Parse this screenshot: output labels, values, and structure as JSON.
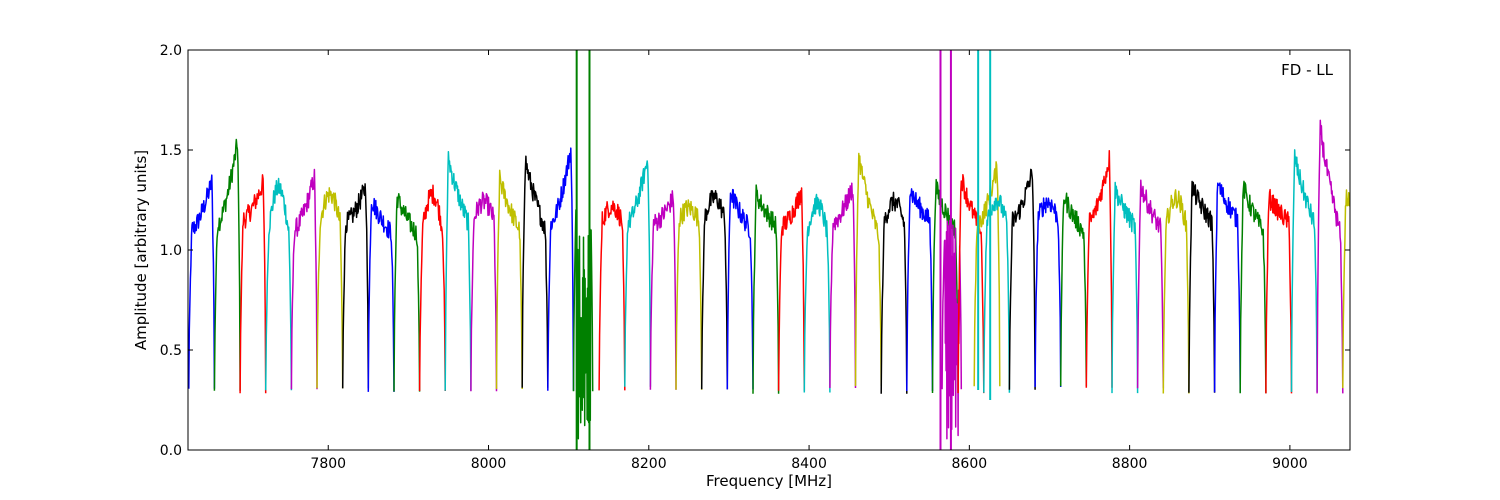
{
  "chart_data": {
    "type": "line",
    "title": "",
    "annotation": "FD - LL",
    "xlabel": "Frequency [MHz]",
    "ylabel": "Amplitude [arbitrary units]",
    "xlim": [
      7625,
      9075
    ],
    "ylim": [
      0.0,
      2.0
    ],
    "xticks": [
      7800,
      8000,
      8200,
      8400,
      8600,
      8800,
      9000
    ],
    "xtick_labels": [
      "7800",
      "8000",
      "8200",
      "8400",
      "8600",
      "8800",
      "9000"
    ],
    "yticks": [
      0.0,
      0.5,
      1.0,
      1.5,
      2.0
    ],
    "ytick_labels": [
      "0.0",
      "0.5",
      "1.0",
      "1.5",
      "2.0"
    ],
    "grid": false,
    "legend": "none",
    "color_cycle": [
      "#0000ff",
      "#008000",
      "#ff0000",
      "#00bfbf",
      "#bf00bf",
      "#bfbf00",
      "#000000"
    ],
    "channel_width_mhz": 32,
    "channel_start_mhz": 7626,
    "channels": [
      {
        "color": "#0000ff",
        "start": 7626,
        "peak": 1.32,
        "shape": "rise"
      },
      {
        "color": "#008000",
        "start": 7658,
        "peak": 1.5,
        "shape": "rise"
      },
      {
        "color": "#ff0000",
        "start": 7690,
        "peak": 1.32,
        "shape": "rise"
      },
      {
        "color": "#00bfbf",
        "start": 7722,
        "peak": 1.31,
        "shape": "hump"
      },
      {
        "color": "#bf00bf",
        "start": 7754,
        "peak": 1.34,
        "shape": "rise"
      },
      {
        "color": "#bfbf00",
        "start": 7786,
        "peak": 1.28,
        "shape": "hump"
      },
      {
        "color": "#000000",
        "start": 7818,
        "peak": 1.3,
        "shape": "rise"
      },
      {
        "color": "#0000ff",
        "start": 7850,
        "peak": 1.25,
        "shape": "fall"
      },
      {
        "color": "#008000",
        "start": 7882,
        "peak": 1.26,
        "shape": "fall"
      },
      {
        "color": "#ff0000",
        "start": 7914,
        "peak": 1.28,
        "shape": "hump"
      },
      {
        "color": "#00bfbf",
        "start": 7946,
        "peak": 1.45,
        "shape": "fall"
      },
      {
        "color": "#bf00bf",
        "start": 7978,
        "peak": 1.24,
        "shape": "hump"
      },
      {
        "color": "#bfbf00",
        "start": 8010,
        "peak": 1.35,
        "shape": "fall"
      },
      {
        "color": "#000000",
        "start": 8042,
        "peak": 1.44,
        "shape": "fall"
      },
      {
        "color": "#0000ff",
        "start": 8074,
        "peak": 1.47,
        "shape": "rise"
      },
      {
        "color": "#008000",
        "start": 8106,
        "peak": 1.29,
        "shape": "rfi"
      },
      {
        "color": "#ff0000",
        "start": 8138,
        "peak": 1.22,
        "shape": "hump"
      },
      {
        "color": "#00bfbf",
        "start": 8170,
        "peak": 1.43,
        "shape": "rise"
      },
      {
        "color": "#bf00bf",
        "start": 8202,
        "peak": 1.25,
        "shape": "rise"
      },
      {
        "color": "#bfbf00",
        "start": 8234,
        "peak": 1.21,
        "shape": "hump"
      },
      {
        "color": "#000000",
        "start": 8266,
        "peak": 1.26,
        "shape": "hump"
      },
      {
        "color": "#0000ff",
        "start": 8298,
        "peak": 1.29,
        "shape": "fall"
      },
      {
        "color": "#008000",
        "start": 8330,
        "peak": 1.28,
        "shape": "fall"
      },
      {
        "color": "#ff0000",
        "start": 8362,
        "peak": 1.28,
        "shape": "rise"
      },
      {
        "color": "#00bfbf",
        "start": 8394,
        "peak": 1.23,
        "shape": "hump"
      },
      {
        "color": "#bf00bf",
        "start": 8426,
        "peak": 1.3,
        "shape": "rise"
      },
      {
        "color": "#bfbf00",
        "start": 8458,
        "peak": 1.46,
        "shape": "fall"
      },
      {
        "color": "#000000",
        "start": 8490,
        "peak": 1.24,
        "shape": "hump"
      },
      {
        "color": "#0000ff",
        "start": 8522,
        "peak": 1.3,
        "shape": "fall"
      },
      {
        "color": "#008000",
        "start": 8554,
        "peak": 1.31,
        "shape": "fall"
      },
      {
        "color": "#bf00bf",
        "start": 8566,
        "peak": 1.1,
        "shape": "rfi"
      },
      {
        "color": "#ff0000",
        "start": 8586,
        "peak": 1.36,
        "shape": "fall"
      },
      {
        "color": "#bfbf00",
        "start": 8606,
        "peak": 1.39,
        "shape": "rise"
      },
      {
        "color": "#00bfbf",
        "start": 8618,
        "peak": 1.25,
        "shape": "hump"
      },
      {
        "color": "#000000",
        "start": 8650,
        "peak": 1.37,
        "shape": "rise"
      },
      {
        "color": "#0000ff",
        "start": 8682,
        "peak": 1.24,
        "shape": "hump"
      },
      {
        "color": "#008000",
        "start": 8714,
        "peak": 1.27,
        "shape": "fall"
      },
      {
        "color": "#ff0000",
        "start": 8746,
        "peak": 1.43,
        "shape": "rise"
      },
      {
        "color": "#00bfbf",
        "start": 8778,
        "peak": 1.3,
        "shape": "fall"
      },
      {
        "color": "#bf00bf",
        "start": 8810,
        "peak": 1.32,
        "shape": "fall"
      },
      {
        "color": "#bfbf00",
        "start": 8842,
        "peak": 1.26,
        "shape": "hump"
      },
      {
        "color": "#000000",
        "start": 8874,
        "peak": 1.31,
        "shape": "fall"
      },
      {
        "color": "#0000ff",
        "start": 8906,
        "peak": 1.33,
        "shape": "fall"
      },
      {
        "color": "#008000",
        "start": 8938,
        "peak": 1.31,
        "shape": "fall"
      },
      {
        "color": "#ff0000",
        "start": 8970,
        "peak": 1.26,
        "shape": "fall"
      },
      {
        "color": "#00bfbf",
        "start": 9002,
        "peak": 1.46,
        "shape": "fall"
      },
      {
        "color": "#bf00bf",
        "start": 9034,
        "peak": 1.6,
        "shape": "fall"
      },
      {
        "color": "#bfbf00",
        "start": 9066,
        "peak": 1.26,
        "shape": "fall"
      }
    ],
    "spikes": [
      {
        "color": "#008000",
        "x": 8110,
        "y_from": 0.0,
        "y_to": 2.0
      },
      {
        "color": "#008000",
        "x": 8126,
        "y_from": 0.0,
        "y_to": 2.0
      },
      {
        "color": "#bf00bf",
        "x": 8564,
        "y_from": 0.0,
        "y_to": 2.0
      },
      {
        "color": "#bf00bf",
        "x": 8577,
        "y_from": 0.0,
        "y_to": 2.0
      },
      {
        "color": "#00bfbf",
        "x": 8611,
        "y_from": 0.3,
        "y_to": 2.0
      },
      {
        "color": "#00bfbf",
        "x": 8626,
        "y_from": 0.25,
        "y_to": 2.0
      }
    ]
  }
}
